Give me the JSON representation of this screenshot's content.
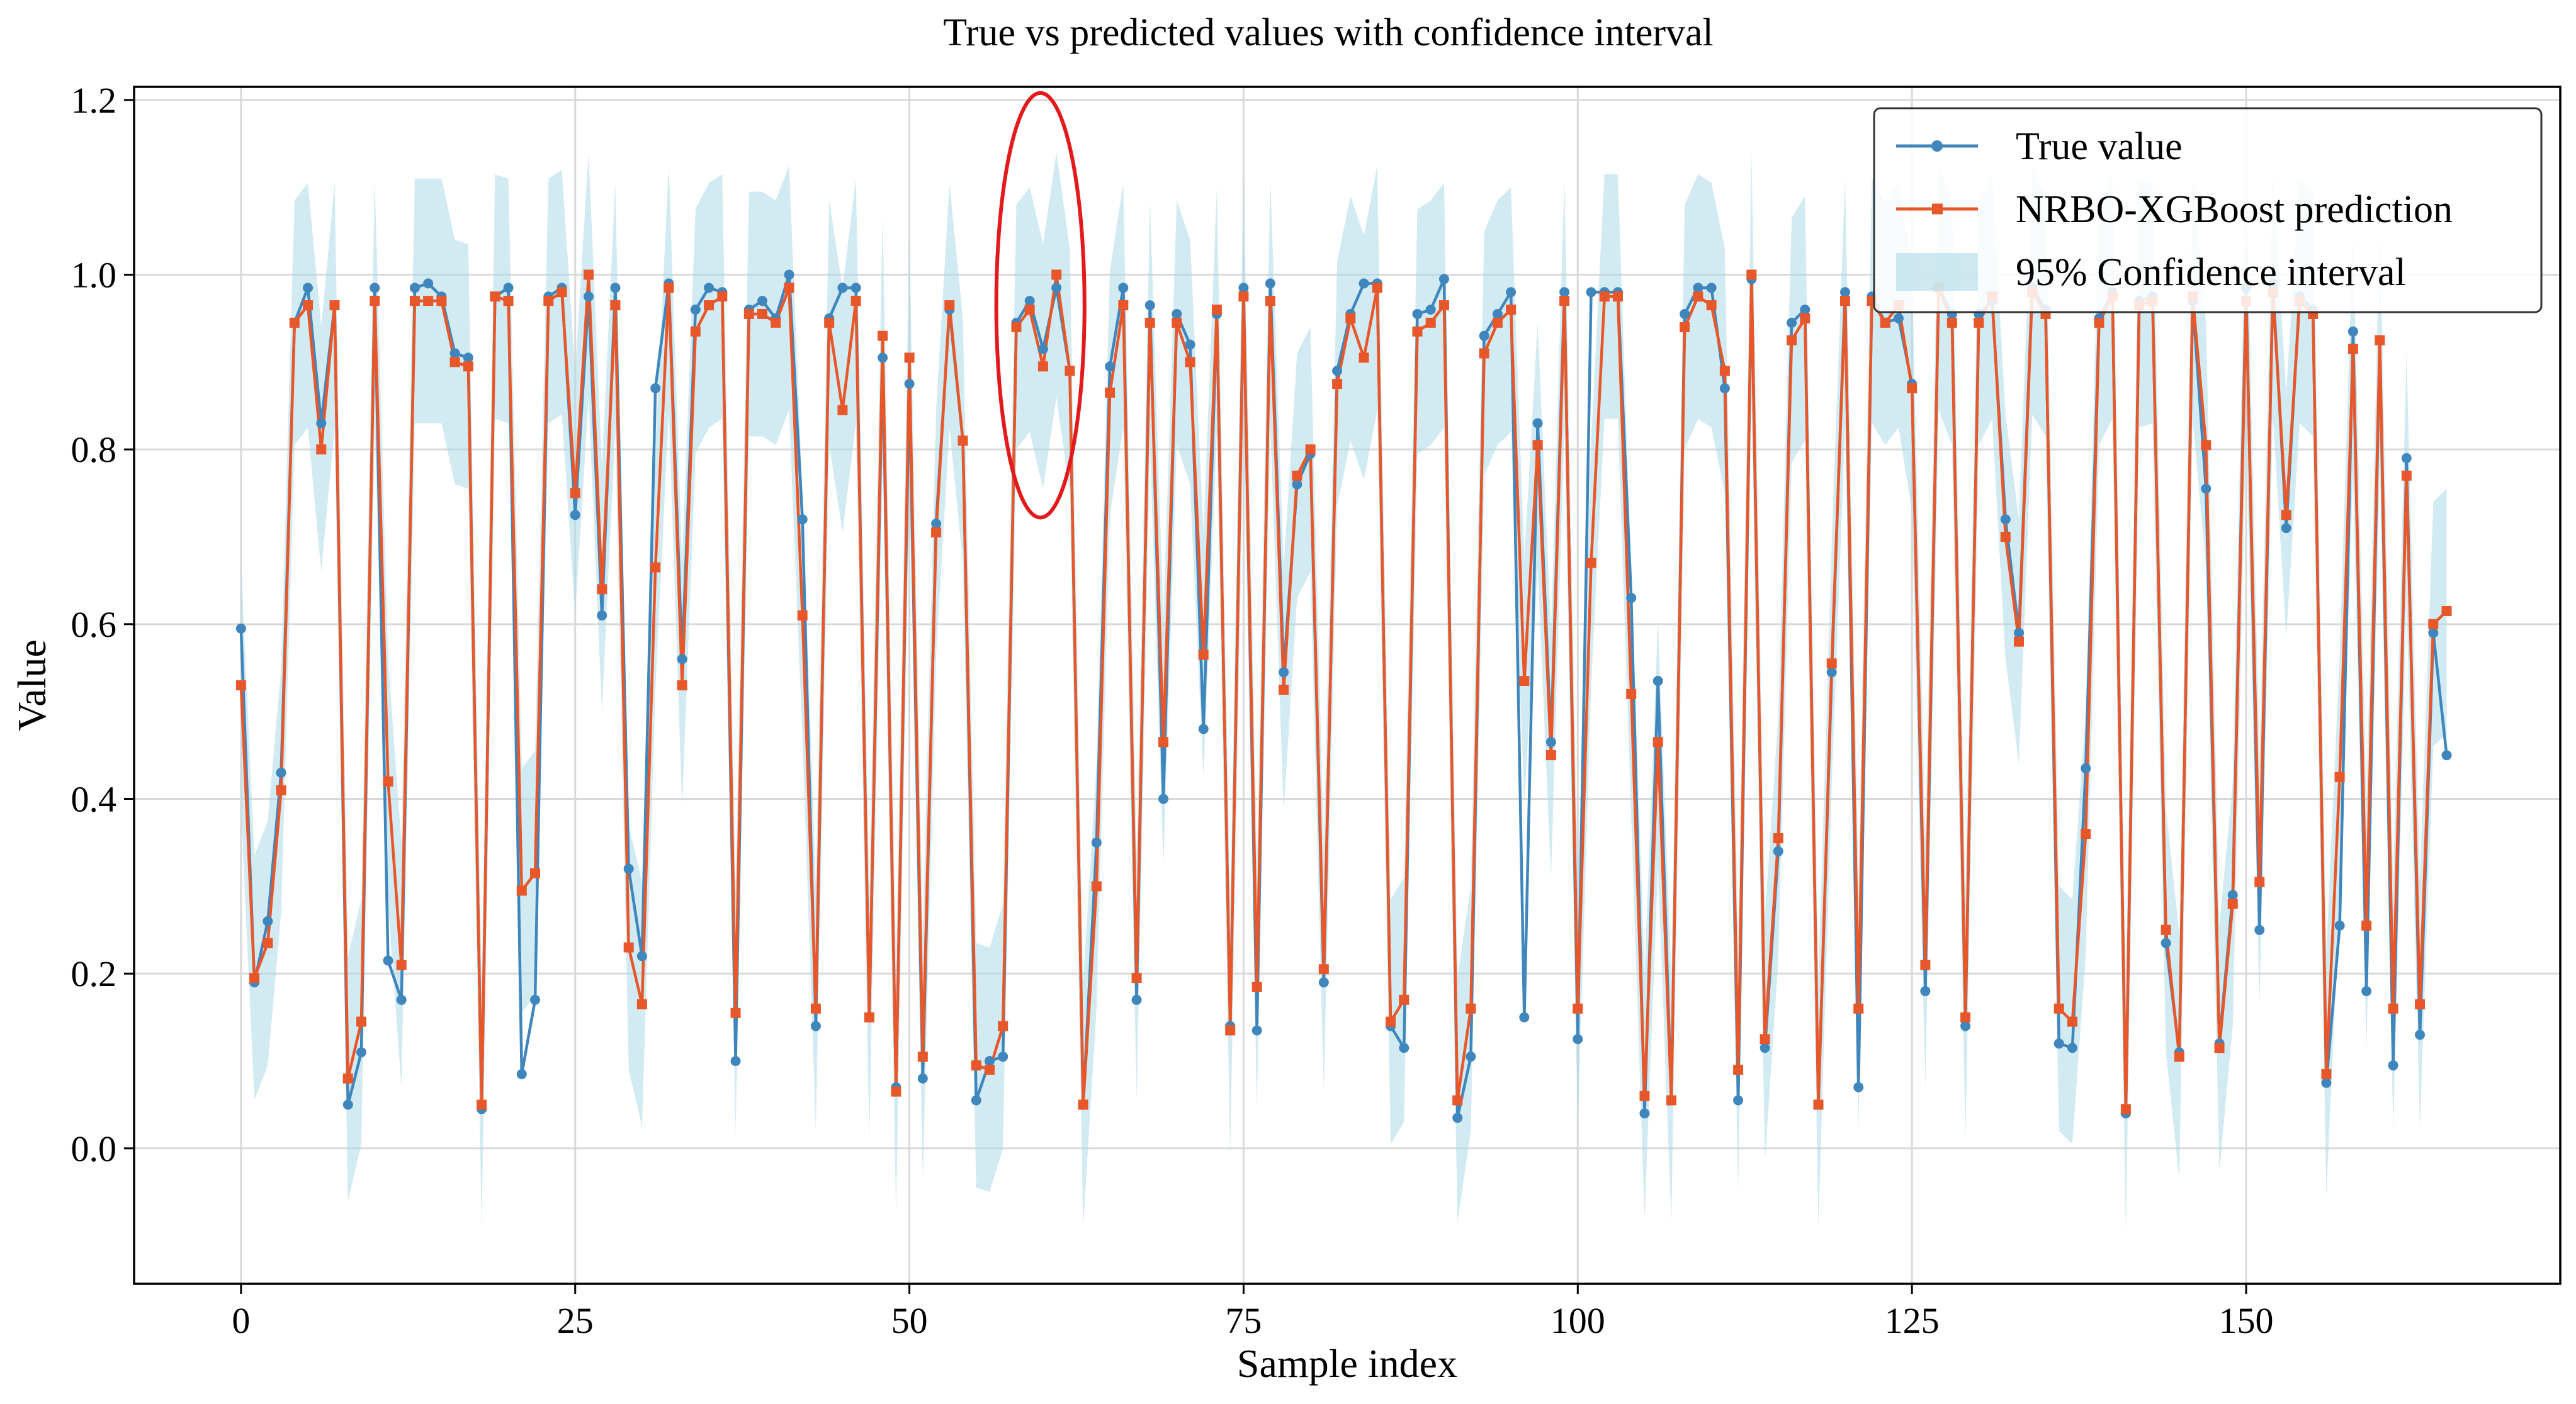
{
  "chart_data": {
    "type": "line",
    "title": "True vs predicted values with confidence interval",
    "xlabel": "Sample index",
    "ylabel": "Value",
    "xlim": [
      -8,
      173.5
    ],
    "ylim": [
      -0.155,
      1.215
    ],
    "xticks": [
      0,
      25,
      50,
      75,
      100,
      125,
      150
    ],
    "yticks": [
      0.0,
      0.2,
      0.4,
      0.6,
      0.8,
      1.0,
      1.2
    ],
    "grid": true,
    "legend_position": "top-right",
    "ci_halfwidth": 0.14,
    "series": [
      {
        "name": "True value",
        "color": "#3f86bc",
        "marker": "circle",
        "values": [
          0.595,
          0.19,
          0.26,
          0.43,
          0.945,
          0.985,
          0.83,
          0.965,
          0.05,
          0.11,
          0.985,
          0.215,
          0.17,
          0.985,
          0.99,
          0.975,
          0.91,
          0.905,
          0.045,
          0.975,
          0.985,
          0.085,
          0.17,
          0.975,
          0.985,
          0.725,
          0.975,
          0.61,
          0.985,
          0.32,
          0.22,
          0.87,
          0.99,
          0.56,
          0.96,
          0.985,
          0.98,
          0.1,
          0.96,
          0.97,
          0.95,
          1.0,
          0.72,
          0.14,
          0.95,
          0.985,
          0.985,
          0.15,
          0.905,
          0.07,
          0.875,
          0.08,
          0.715,
          0.96,
          0.81,
          0.055,
          0.1,
          0.105,
          0.945,
          0.97,
          0.915,
          0.985,
          0.89,
          0.05,
          0.35,
          0.895,
          0.985,
          0.17,
          0.965,
          0.4,
          0.955,
          0.92,
          0.48,
          0.955,
          0.14,
          0.985,
          0.135,
          0.99,
          0.545,
          0.76,
          0.795,
          0.19,
          0.89,
          0.955,
          0.99,
          0.99,
          0.14,
          0.115,
          0.955,
          0.96,
          0.995,
          0.035,
          0.105,
          0.93,
          0.955,
          0.98,
          0.15,
          0.83,
          0.465,
          0.98,
          0.125,
          0.98,
          0.98,
          0.98,
          0.63,
          0.04,
          0.535,
          0.055,
          0.955,
          0.985,
          0.985,
          0.87,
          0.055,
          0.995,
          0.115,
          0.34,
          0.945,
          0.96,
          0.05,
          0.545,
          0.98,
          0.07,
          0.975,
          0.945,
          0.95,
          0.875,
          0.18,
          0.985,
          0.955,
          0.14,
          0.955,
          0.97,
          0.72,
          0.59,
          0.985,
          0.96,
          0.12,
          0.115,
          0.435,
          0.95,
          0.98,
          0.04,
          0.97,
          0.975,
          0.235,
          0.11,
          0.97,
          0.755,
          0.12,
          0.29,
          0.985,
          0.25,
          0.99,
          0.71,
          0.975,
          0.96,
          0.075,
          0.255,
          0.935,
          0.18,
          0.925,
          0.095,
          0.79,
          0.13,
          0.59,
          0.45
        ]
      },
      {
        "name": "NRBO-XGBoost prediction",
        "color": "#e8572a",
        "marker": "square",
        "values": [
          0.53,
          0.195,
          0.235,
          0.41,
          0.945,
          0.965,
          0.8,
          0.965,
          0.08,
          0.145,
          0.97,
          0.42,
          0.21,
          0.97,
          0.97,
          0.97,
          0.9,
          0.895,
          0.05,
          0.975,
          0.97,
          0.295,
          0.315,
          0.97,
          0.98,
          0.75,
          1.0,
          0.64,
          0.965,
          0.23,
          0.165,
          0.665,
          0.985,
          0.53,
          0.935,
          0.965,
          0.975,
          0.155,
          0.955,
          0.955,
          0.945,
          0.985,
          0.61,
          0.16,
          0.945,
          0.845,
          0.97,
          0.15,
          0.93,
          0.065,
          0.905,
          0.105,
          0.705,
          0.965,
          0.81,
          0.095,
          0.09,
          0.14,
          0.94,
          0.96,
          0.895,
          1.0,
          0.89,
          0.05,
          0.3,
          0.865,
          0.965,
          0.195,
          0.945,
          0.465,
          0.945,
          0.9,
          0.565,
          0.96,
          0.135,
          0.975,
          0.185,
          0.97,
          0.525,
          0.77,
          0.8,
          0.205,
          0.875,
          0.95,
          0.905,
          0.985,
          0.145,
          0.17,
          0.935,
          0.945,
          0.965,
          0.055,
          0.16,
          0.91,
          0.945,
          0.96,
          0.535,
          0.805,
          0.45,
          0.97,
          0.16,
          0.67,
          0.975,
          0.975,
          0.52,
          0.06,
          0.465,
          0.055,
          0.94,
          0.975,
          0.965,
          0.89,
          0.09,
          1.0,
          0.125,
          0.355,
          0.925,
          0.95,
          0.05,
          0.555,
          0.97,
          0.16,
          0.97,
          0.945,
          0.965,
          0.87,
          0.21,
          0.985,
          0.945,
          0.15,
          0.945,
          0.975,
          0.7,
          0.58,
          0.98,
          0.955,
          0.16,
          0.145,
          0.36,
          0.945,
          0.975,
          0.045,
          0.965,
          0.97,
          0.25,
          0.105,
          0.975,
          0.805,
          0.115,
          0.28,
          0.97,
          0.305,
          0.98,
          0.725,
          0.97,
          0.955,
          0.085,
          0.425,
          0.915,
          0.255,
          0.925,
          0.16,
          0.77,
          0.165,
          0.6,
          0.615
        ]
      }
    ],
    "confidence_band": {
      "name": "95% Confidence interval",
      "color": "#add8e6",
      "level": "95%"
    },
    "annotation": {
      "type": "ellipse",
      "color": "#e31a1c",
      "center_x": 59.8,
      "center_y": 0.965,
      "radius_x": 3.3,
      "radius_y": 0.243
    }
  }
}
